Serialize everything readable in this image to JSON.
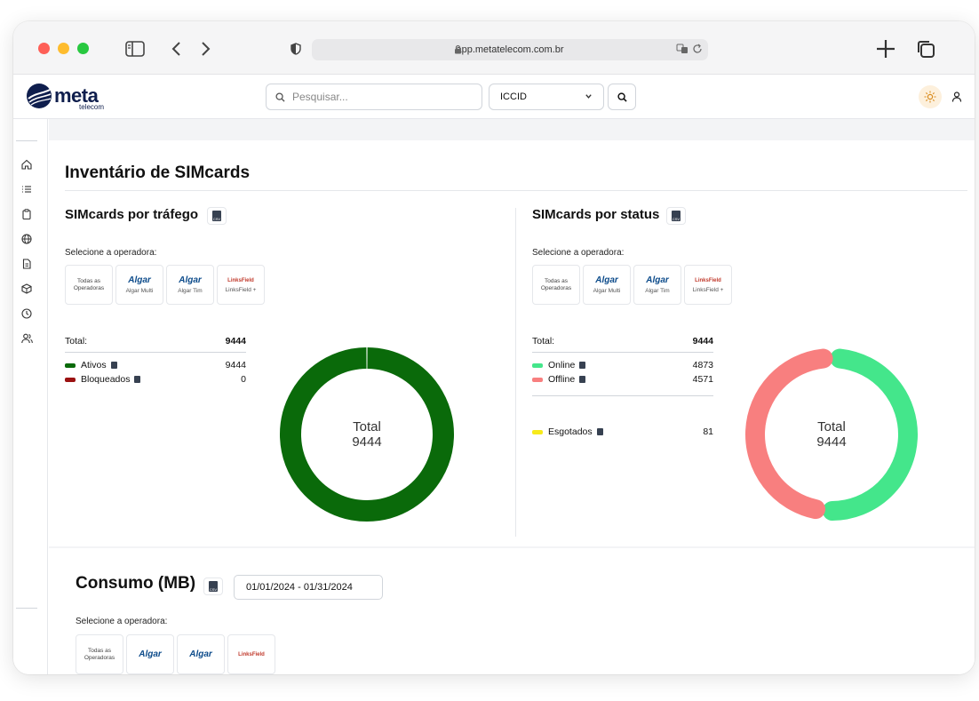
{
  "browser": {
    "url": "app.metatelecom.com.br",
    "traffic_colors": [
      "#fe5f57",
      "#febc2e",
      "#28c840"
    ]
  },
  "header": {
    "logo_text": "meta",
    "logo_sub": "telecom",
    "search_placeholder": "Pesquisar...",
    "search_type": "ICCID"
  },
  "page": {
    "title": "Inventário de SIMcards"
  },
  "traffic": {
    "title": "SIMcards por tráfego",
    "select_label": "Selecione a operadora:",
    "operators": [
      {
        "logo": "",
        "name": "Todas as Operadoras"
      },
      {
        "logo": "Algar",
        "name": "Algar Multi"
      },
      {
        "logo": "Algar",
        "name": "Algar Tim"
      },
      {
        "logo": "LinksField",
        "name": "LinksField +"
      }
    ],
    "total_label": "Total:",
    "total_value": "9444",
    "items": [
      {
        "label": "Ativos",
        "value": "9444",
        "color": "#0a6a0a"
      },
      {
        "label": "Bloqueados",
        "value": "0",
        "color": "#9b1212"
      }
    ],
    "donut_label": "Total",
    "donut_value": "9444"
  },
  "status": {
    "title": "SIMcards por status",
    "select_label": "Selecione a operadora:",
    "operators": [
      {
        "logo": "",
        "name": "Todas as Operadoras"
      },
      {
        "logo": "Algar",
        "name": "Algar Multi"
      },
      {
        "logo": "Algar",
        "name": "Algar Tim"
      },
      {
        "logo": "LinksField",
        "name": "LinksField +"
      }
    ],
    "total_label": "Total:",
    "total_value": "9444",
    "items": [
      {
        "label": "Online",
        "value": "4873",
        "color": "#44e68b"
      },
      {
        "label": "Offline",
        "value": "4571",
        "color": "#f87f7f"
      }
    ],
    "extra": {
      "label": "Esgotados",
      "value": "81",
      "color": "#f7ea1b"
    },
    "donut_label": "Total",
    "donut_value": "9444"
  },
  "consumo": {
    "title": "Consumo (MB)",
    "date_range": "01/01/2024 - 01/31/2024",
    "select_label": "Selecione a operadora:",
    "operators": [
      {
        "logo": "",
        "name": "Todas as Operadoras"
      },
      {
        "logo": "Algar",
        "name": ""
      },
      {
        "logo": "Algar",
        "name": ""
      },
      {
        "logo": "LinksField",
        "name": ""
      }
    ]
  },
  "chart_data": [
    {
      "type": "pie",
      "categories": [
        "Ativos",
        "Bloqueados"
      ],
      "values": [
        9444,
        0
      ],
      "center_text": "Total 9444"
    },
    {
      "type": "pie",
      "categories": [
        "Online",
        "Offline"
      ],
      "values": [
        4873,
        4571
      ],
      "center_text": "Total 9444"
    }
  ]
}
